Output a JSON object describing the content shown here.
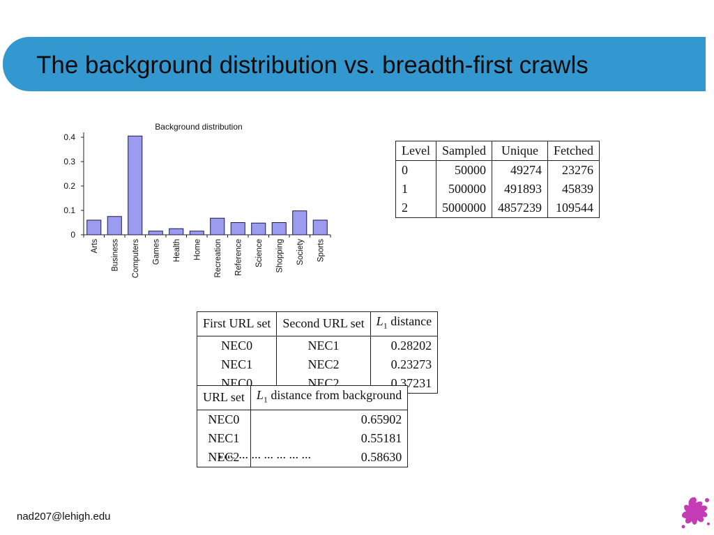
{
  "slide": {
    "title": "The background distribution vs. breadth-first crawls",
    "footer_email": "nad207@lehigh.edu",
    "truncated_caption": "The ... ... ... ... ... ..."
  },
  "colors": {
    "title_bar": "#3398d0",
    "bar_fill": "#9b9bef",
    "bar_stroke": "#1a1a4d"
  },
  "chart_data": {
    "type": "bar",
    "title": "Background distribution",
    "categories": [
      "Arts",
      "Business",
      "Computers",
      "Games",
      "Health",
      "Home",
      "Recreation",
      "Reference",
      "Science",
      "Shopping",
      "Society",
      "Sports"
    ],
    "values": [
      0.06,
      0.075,
      0.405,
      0.015,
      0.025,
      0.015,
      0.068,
      0.05,
      0.048,
      0.05,
      0.098,
      0.06
    ],
    "yticks": [
      "0",
      "0.1",
      "0.2",
      "0.3",
      "0.4"
    ],
    "ylim": [
      0,
      0.42
    ],
    "grid": false,
    "xlabel": "",
    "ylabel": ""
  },
  "levels_table": {
    "headers": [
      "Level",
      "Sampled",
      "Unique",
      "Fetched"
    ],
    "rows": [
      [
        "0",
        "50000",
        "49274",
        "23276"
      ],
      [
        "1",
        "500000",
        "491893",
        "45839"
      ],
      [
        "2",
        "5000000",
        "4857239",
        "109544"
      ]
    ]
  },
  "distance_table": {
    "headers": [
      "First URL set",
      "Second URL set",
      "L1 distance"
    ],
    "rows": [
      [
        "NEC0",
        "NEC1",
        "0.28202"
      ],
      [
        "NEC1",
        "NEC2",
        "0.23273"
      ],
      [
        "NEC0",
        "NEC2",
        "0.37231"
      ]
    ]
  },
  "background_table": {
    "headers": [
      "URL set",
      "L1 distance from background"
    ],
    "rows": [
      [
        "NEC0",
        "0.65902"
      ],
      [
        "NEC1",
        "0.55181"
      ],
      [
        "NEC2",
        "0.58630"
      ]
    ]
  },
  "icons": {
    "logo": "paint-splat-icon"
  }
}
